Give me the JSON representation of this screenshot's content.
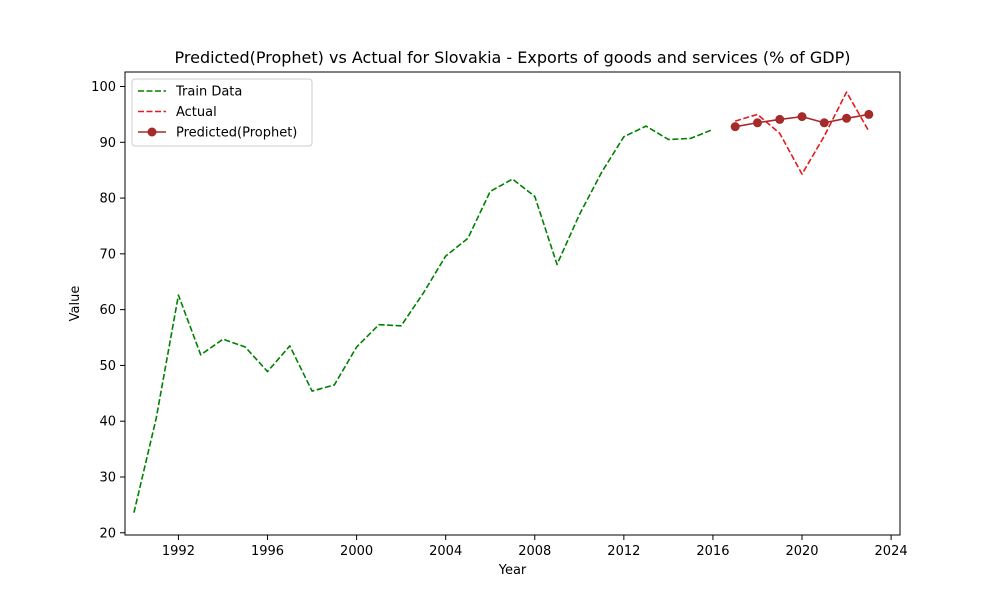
{
  "chart_data": {
    "type": "line",
    "title": "Predicted(Prophet) vs Actual for Slovakia - Exports of goods and services (% of GDP)",
    "xlabel": "Year",
    "ylabel": "Value",
    "xlim": [
      1989.6,
      2024.4
    ],
    "ylim": [
      19.6,
      102.6
    ],
    "xticks": [
      1992,
      1996,
      2000,
      2004,
      2008,
      2012,
      2016,
      2020,
      2024
    ],
    "yticks": [
      20,
      30,
      40,
      50,
      60,
      70,
      80,
      90,
      100
    ],
    "grid": false,
    "legend_position": "top-left",
    "series": [
      {
        "name": "Train Data",
        "color": "#008000",
        "style": "dashed",
        "x": [
          1990,
          1991,
          1992,
          1993,
          1994,
          1995,
          1996,
          1997,
          1998,
          1999,
          2000,
          2001,
          2002,
          2003,
          2004,
          2005,
          2006,
          2007,
          2008,
          2009,
          2010,
          2011,
          2012,
          2013,
          2014,
          2015,
          2016
        ],
        "values": [
          23.6,
          40.5,
          62.6,
          51.9,
          54.7,
          53.3,
          48.9,
          53.5,
          45.4,
          46.5,
          53.3,
          57.3,
          57.1,
          63.0,
          69.6,
          72.8,
          81.2,
          83.4,
          80.3,
          68.1,
          77.0,
          84.6,
          91.0,
          92.9,
          90.5,
          90.7,
          92.3
        ]
      },
      {
        "name": "Actual",
        "color": "#e41a1c",
        "style": "dashed",
        "x": [
          2017,
          2018,
          2019,
          2020,
          2021,
          2022,
          2023
        ],
        "values": [
          93.8,
          95.0,
          91.6,
          84.3,
          91.1,
          99.0,
          92.0
        ]
      },
      {
        "name": "Predicted(Prophet)",
        "color": "#a52a2a",
        "style": "solid-markers",
        "x": [
          2017,
          2018,
          2019,
          2020,
          2021,
          2022,
          2023
        ],
        "values": [
          92.8,
          93.5,
          94.1,
          94.6,
          93.5,
          94.3,
          95.0
        ]
      }
    ]
  }
}
